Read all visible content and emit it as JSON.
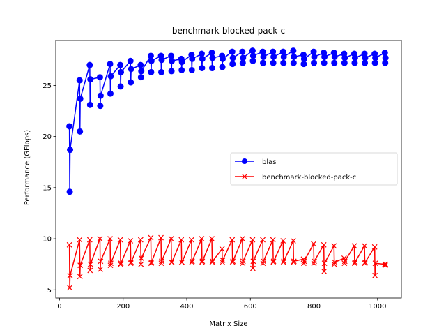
{
  "chart_data": {
    "type": "line",
    "title": "benchmark-blocked-pack-c",
    "xlabel": "Matrix Size",
    "ylabel": "Performance (GFlops)",
    "xlim": [
      -12,
      1075
    ],
    "ylim": [
      4.2,
      29.4
    ],
    "xticks": [
      0,
      200,
      400,
      600,
      800,
      1000
    ],
    "yticks": [
      5,
      10,
      15,
      20,
      25
    ],
    "grid": false,
    "legend_position": "center-right",
    "series": [
      {
        "name": "blas",
        "color": "#0000ff",
        "marker": "circle",
        "x": [
          31,
          32,
          33,
          63,
          64,
          65,
          95,
          96,
          97,
          127,
          128,
          129,
          159,
          160,
          161,
          191,
          192,
          193,
          223,
          224,
          225,
          255,
          256,
          257,
          287,
          288,
          289,
          319,
          320,
          321,
          351,
          352,
          353,
          383,
          384,
          385,
          415,
          416,
          417,
          447,
          448,
          449,
          479,
          480,
          481,
          511,
          512,
          513,
          543,
          544,
          545,
          575,
          576,
          577,
          607,
          608,
          609,
          639,
          640,
          641,
          671,
          672,
          673,
          703,
          704,
          705,
          735,
          736,
          737,
          767,
          768,
          769,
          799,
          800,
          801,
          831,
          832,
          833,
          863,
          864,
          865,
          895,
          896,
          897,
          927,
          928,
          929,
          959,
          960,
          961,
          991,
          992,
          993,
          1023,
          1024,
          1025
        ],
        "y": [
          21.0,
          14.6,
          18.7,
          25.5,
          20.5,
          23.7,
          27.0,
          23.1,
          25.6,
          25.8,
          23.0,
          24.0,
          27.1,
          24.2,
          25.9,
          27.0,
          24.9,
          26.3,
          27.4,
          25.3,
          26.6,
          27.0,
          25.8,
          26.4,
          27.9,
          26.3,
          27.4,
          27.9,
          26.3,
          27.5,
          27.9,
          26.4,
          27.4,
          27.6,
          26.5,
          27.3,
          28.0,
          26.5,
          27.6,
          28.1,
          26.7,
          27.6,
          28.2,
          26.7,
          27.7,
          27.9,
          26.8,
          27.6,
          28.3,
          27.1,
          27.7,
          28.3,
          27.2,
          27.7,
          28.4,
          27.4,
          27.9,
          28.3,
          27.2,
          27.8,
          28.3,
          27.2,
          27.8,
          28.3,
          27.2,
          27.8,
          28.4,
          27.2,
          27.8,
          28.0,
          27.1,
          27.6,
          28.3,
          27.2,
          27.8,
          28.2,
          27.2,
          27.8,
          28.2,
          27.2,
          27.8,
          28.1,
          27.2,
          27.7,
          28.1,
          27.2,
          27.7,
          28.1,
          27.2,
          27.7,
          28.1,
          27.2,
          27.7,
          28.2,
          27.2,
          27.7
        ]
      },
      {
        "name": "benchmark-blocked-pack-c",
        "color": "#ff0000",
        "marker": "x",
        "x": [
          31,
          32,
          33,
          63,
          64,
          65,
          95,
          96,
          97,
          127,
          128,
          129,
          159,
          160,
          161,
          191,
          192,
          193,
          223,
          224,
          225,
          255,
          256,
          257,
          287,
          288,
          289,
          319,
          320,
          321,
          351,
          352,
          353,
          383,
          384,
          385,
          415,
          416,
          417,
          447,
          448,
          449,
          479,
          480,
          481,
          511,
          512,
          513,
          543,
          544,
          545,
          575,
          576,
          577,
          607,
          608,
          609,
          639,
          640,
          641,
          671,
          672,
          673,
          703,
          704,
          705,
          735,
          736,
          737,
          767,
          768,
          769,
          799,
          800,
          801,
          831,
          832,
          833,
          863,
          864,
          865,
          895,
          896,
          897,
          927,
          928,
          929,
          959,
          960,
          961,
          991,
          992,
          993,
          1023,
          1024,
          1025
        ],
        "y": [
          9.4,
          5.2,
          6.4,
          9.9,
          6.3,
          7.4,
          9.9,
          6.9,
          7.5,
          10.0,
          7.0,
          7.8,
          10.0,
          7.4,
          7.6,
          9.9,
          7.5,
          7.6,
          9.8,
          7.6,
          7.7,
          9.9,
          7.5,
          8.1,
          10.1,
          7.6,
          7.7,
          10.1,
          7.6,
          7.8,
          10.0,
          7.7,
          7.7,
          9.9,
          7.7,
          7.7,
          9.9,
          7.7,
          7.8,
          10.0,
          7.7,
          7.8,
          10.0,
          7.7,
          7.8,
          9.0,
          7.7,
          7.9,
          9.9,
          7.7,
          7.8,
          10.0,
          7.6,
          7.8,
          9.9,
          7.1,
          7.8,
          9.9,
          7.6,
          7.8,
          9.9,
          7.7,
          7.8,
          9.8,
          7.7,
          7.8,
          9.8,
          7.7,
          7.8,
          8.0,
          7.6,
          7.8,
          9.5,
          7.6,
          7.8,
          9.4,
          6.8,
          7.6,
          9.3,
          7.5,
          7.7,
          8.1,
          7.6,
          7.8,
          9.3,
          7.6,
          7.7,
          9.3,
          7.6,
          7.7,
          9.2,
          6.4,
          7.6,
          7.5,
          7.4,
          7.5
        ]
      }
    ]
  }
}
